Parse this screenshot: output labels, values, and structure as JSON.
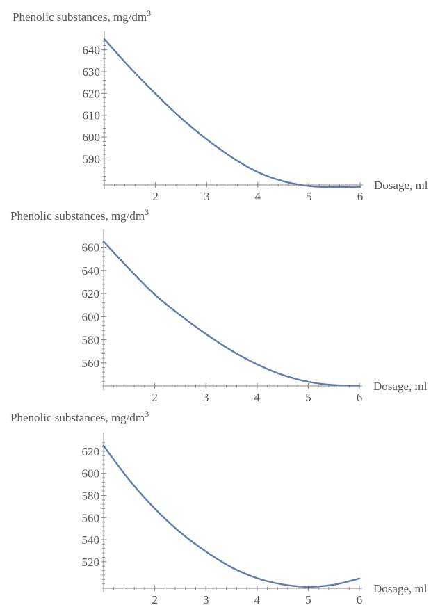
{
  "chart_data": [
    {
      "type": "line",
      "ylabel": "Phenolic substances, mg/dm",
      "ylabel_superscript": "3",
      "xlabel": "Dosage, ml",
      "xlim": [
        1,
        6
      ],
      "ylim": [
        578,
        645
      ],
      "x_ticks": [
        2,
        3,
        4,
        5,
        6
      ],
      "y_ticks": [
        590,
        600,
        610,
        620,
        630,
        640
      ],
      "series": [
        {
          "color": "#5b7db5",
          "x": [
            1,
            1.5,
            2,
            2.5,
            3,
            3.5,
            4,
            4.5,
            5,
            5.5,
            6
          ],
          "y": [
            645,
            631.9,
            619.9,
            608.7,
            599.0,
            590.6,
            583.9,
            579.7,
            577.5,
            577.0,
            577.2
          ]
        }
      ]
    },
    {
      "type": "line",
      "ylabel": "Phenolic substances, mg/dm",
      "ylabel_superscript": "3",
      "xlabel": "Dosage, ml",
      "xlim": [
        1,
        6
      ],
      "ylim": [
        540,
        667
      ],
      "x_ticks": [
        2,
        3,
        4,
        5,
        6
      ],
      "y_ticks": [
        560,
        580,
        600,
        620,
        640,
        660
      ],
      "series": [
        {
          "color": "#5b7db5",
          "x": [
            1,
            1.5,
            2,
            2.5,
            3,
            3.5,
            4,
            4.5,
            5,
            5.5,
            6
          ],
          "y": [
            665,
            641.3,
            619.0,
            601.2,
            585.0,
            570.6,
            558.7,
            549.6,
            543.6,
            540.8,
            540.3
          ]
        }
      ]
    },
    {
      "type": "line",
      "ylabel": "Phenolic substances, mg/dm",
      "ylabel_superscript": "3",
      "xlabel": "Dosage, ml",
      "xlim": [
        1,
        6
      ],
      "ylim": [
        496,
        630
      ],
      "x_ticks": [
        2,
        3,
        4,
        5,
        6
      ],
      "y_ticks": [
        520,
        540,
        560,
        580,
        600,
        620
      ],
      "series": [
        {
          "color": "#5b7db5",
          "x": [
            1,
            1.5,
            2,
            2.5,
            3,
            3.5,
            4,
            4.5,
            5,
            5.5,
            6
          ],
          "y": [
            625,
            594.1,
            568.1,
            546.6,
            529.3,
            515.0,
            505.2,
            499.5,
            497.4,
            499.3,
            504.9
          ]
        }
      ]
    }
  ]
}
